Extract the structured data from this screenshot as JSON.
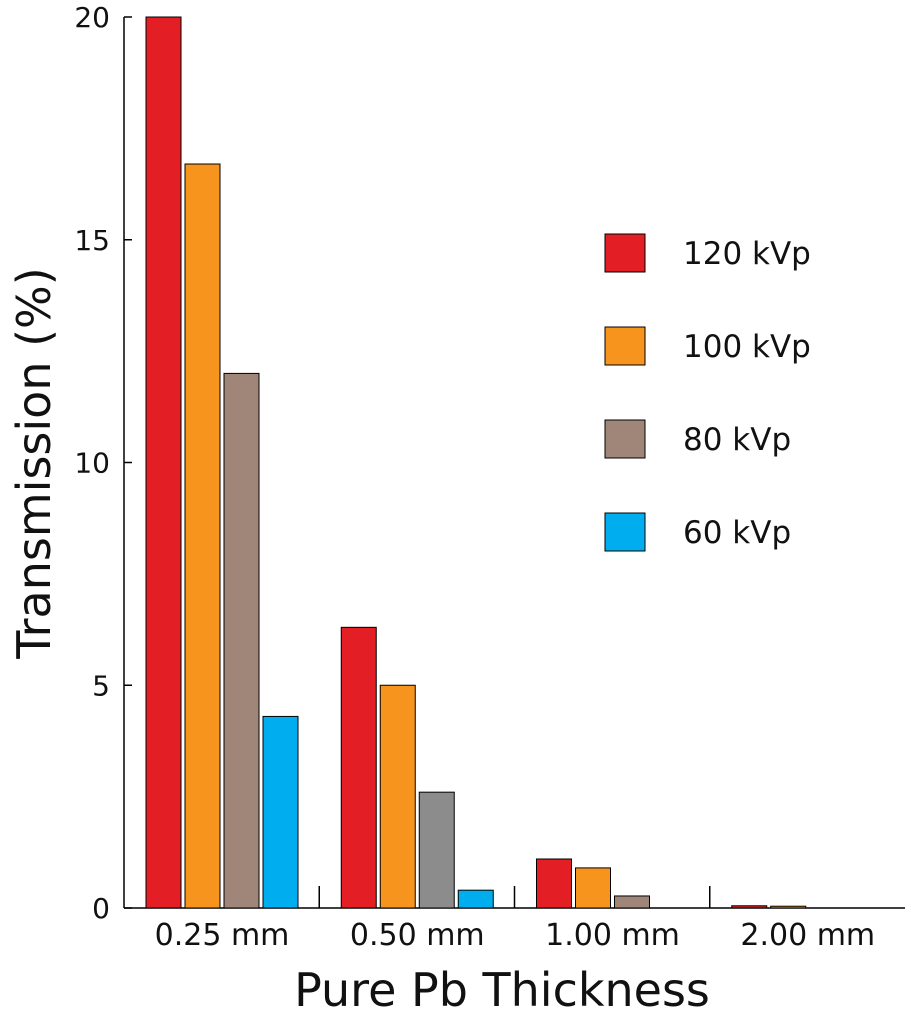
{
  "chart_data": {
    "type": "bar",
    "title": "",
    "xlabel": "Pure Pb Thickness",
    "ylabel": "Transmission (%)",
    "ylim": [
      0,
      20
    ],
    "yticks": [
      "0",
      "5",
      "10",
      "15",
      "20"
    ],
    "categories": [
      "0.25 mm",
      "0.50 mm",
      "1.00 mm",
      "2.00 mm"
    ],
    "series": [
      {
        "name": "120 kVp",
        "color": "#e31e24",
        "values": [
          20.0,
          6.3,
          1.1,
          0.05
        ]
      },
      {
        "name": "100 kVp",
        "color": "#f7941d",
        "values": [
          16.7,
          5.0,
          0.9,
          0.04
        ]
      },
      {
        "name": "80 kVp",
        "color": "#a08679",
        "values": [
          12.0,
          2.6,
          0.27,
          0.0
        ]
      },
      {
        "name": "60 kVp",
        "color": "#00aeef",
        "values": [
          4.3,
          0.4,
          0.0,
          0.0
        ]
      }
    ],
    "point_colors": {
      "80 kVp|0.50 mm": "#8c8c8c"
    },
    "grid": false,
    "legend_position": "top-right"
  }
}
